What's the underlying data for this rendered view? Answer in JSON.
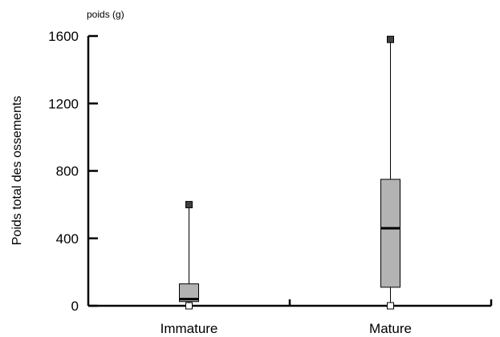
{
  "chart_data": {
    "type": "box",
    "unit_label": "poids (g)",
    "ylabel": "Poids total des ossements",
    "ylim": [
      0,
      1600
    ],
    "yticks": [
      "0",
      "400",
      "800",
      "1200",
      "1600"
    ],
    "ytick_values": [
      0,
      400,
      800,
      1200,
      1600
    ],
    "categories": [
      "Immature",
      "Mature"
    ],
    "boxes": [
      {
        "category": "Immature",
        "min": 0,
        "q1": 25,
        "median": 40,
        "q3": 130,
        "max": 600
      },
      {
        "category": "Mature",
        "min": 0,
        "q1": 110,
        "median": 460,
        "q3": 750,
        "max": 1580
      }
    ],
    "colors": {
      "box_fill": "#b3b3b3",
      "line": "#000000",
      "max_marker": "#404040",
      "min_marker": "#ffffff"
    }
  }
}
